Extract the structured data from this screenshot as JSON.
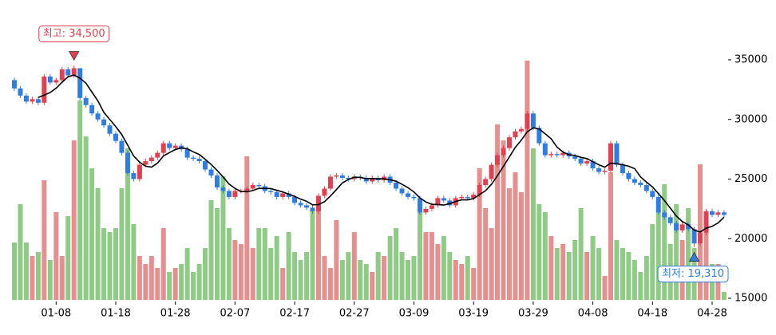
{
  "chart_data": {
    "type": "candlestick",
    "categories": [
      null,
      null,
      null,
      null,
      null,
      null,
      null,
      "01-08",
      null,
      null,
      null,
      null,
      null,
      null,
      null,
      null,
      null,
      "01-18",
      null,
      null,
      null,
      null,
      null,
      null,
      null,
      null,
      null,
      "01-28",
      null,
      null,
      null,
      null,
      null,
      null,
      null,
      null,
      null,
      "02-07",
      null,
      null,
      null,
      null,
      null,
      null,
      null,
      null,
      null,
      "02-17",
      null,
      null,
      null,
      null,
      null,
      null,
      null,
      null,
      null,
      "02-27",
      null,
      null,
      null,
      null,
      null,
      null,
      null,
      null,
      null,
      "03-09",
      null,
      null,
      null,
      null,
      null,
      null,
      null,
      null,
      null,
      "03-19",
      null,
      null,
      null,
      null,
      null,
      null,
      null,
      null,
      null,
      "03-29",
      null,
      null,
      null,
      null,
      null,
      null,
      null,
      null,
      null,
      "04-08",
      null,
      null,
      null,
      null,
      null,
      null,
      null,
      null,
      null,
      "04-18",
      null,
      null,
      null,
      null,
      null,
      null,
      null,
      null,
      null,
      "04-28",
      null,
      null
    ],
    "open": [
      33300,
      32600,
      32000,
      31500,
      31700,
      31400,
      33600,
      33100,
      33300,
      34200,
      33700,
      34300,
      31800,
      31200,
      30500,
      30000,
      29500,
      28800,
      28200,
      27200,
      25500,
      25000,
      26200,
      26500,
      26800,
      27200,
      28000,
      27600,
      27800,
      27500,
      26800,
      26700,
      26500,
      25800,
      25300,
      24300,
      24000,
      23500,
      24000,
      24000,
      24200,
      24500,
      24400,
      24000,
      23900,
      23500,
      23800,
      23500,
      23000,
      22800,
      22600,
      22300,
      23600,
      24200,
      25200,
      25300,
      25100,
      25000,
      25200,
      25100,
      24800,
      25100,
      24900,
      25200,
      24700,
      24200,
      23800,
      23500,
      23400,
      22200,
      22500,
      22800,
      23400,
      23200,
      22800,
      23400,
      23500,
      23400,
      23700,
      24500,
      25000,
      26200,
      27000,
      27600,
      28500,
      29000,
      29200,
      30500,
      29300,
      28000,
      27000,
      27100,
      27000,
      27200,
      26900,
      26700,
      26300,
      26500,
      25900,
      25600,
      25700,
      28000,
      26200,
      25500,
      25000,
      24700,
      24500,
      24000,
      23500,
      22200,
      21800,
      21300,
      20700,
      21200,
      20800,
      19600,
      20500,
      22300,
      22000,
      22200
    ],
    "high": [
      33500,
      32800,
      32200,
      31900,
      31900,
      33800,
      33800,
      33500,
      34400,
      34400,
      34500,
      34300,
      32000,
      31400,
      30700,
      30200,
      29700,
      29000,
      28400,
      27400,
      25700,
      26400,
      26700,
      27000,
      27400,
      28200,
      28200,
      28000,
      28000,
      27700,
      27000,
      26900,
      26700,
      26000,
      25500,
      24500,
      24200,
      24200,
      24200,
      24400,
      24700,
      24700,
      24600,
      24200,
      24100,
      24000,
      24000,
      23700,
      23200,
      23000,
      22800,
      23800,
      24400,
      25400,
      25500,
      25500,
      25300,
      25400,
      25400,
      25300,
      25300,
      25300,
      25400,
      25400,
      24900,
      24400,
      24000,
      23700,
      23600,
      22700,
      23000,
      23600,
      23600,
      23400,
      23600,
      23700,
      23700,
      23900,
      24700,
      25200,
      26400,
      27200,
      27800,
      28700,
      29200,
      29400,
      30700,
      30700,
      29500,
      28200,
      27300,
      27300,
      27400,
      27400,
      27100,
      26900,
      26700,
      26700,
      26100,
      25900,
      28200,
      28200,
      26400,
      25700,
      25200,
      24900,
      24700,
      24200,
      23700,
      22400,
      22000,
      21500,
      21400,
      21400,
      21000,
      20700,
      22500,
      22500,
      22400,
      22400
    ],
    "low": [
      32400,
      31800,
      31300,
      31300,
      31200,
      31200,
      32900,
      32900,
      33100,
      33500,
      33500,
      31600,
      31000,
      30300,
      29800,
      29300,
      28600,
      28000,
      27000,
      25300,
      24800,
      24800,
      26000,
      26300,
      26600,
      27000,
      27400,
      27400,
      27300,
      26600,
      26500,
      26300,
      25600,
      25100,
      24100,
      23800,
      23300,
      23300,
      23800,
      23800,
      24000,
      24200,
      23800,
      23700,
      23300,
      23300,
      23300,
      22800,
      22600,
      22400,
      22100,
      22100,
      23400,
      24000,
      25000,
      24900,
      24800,
      24800,
      24900,
      24600,
      24600,
      24700,
      24700,
      24500,
      24000,
      23600,
      23300,
      23200,
      22000,
      22000,
      22300,
      22600,
      23000,
      22600,
      22600,
      23200,
      23200,
      23200,
      23500,
      24300,
      24800,
      26000,
      26800,
      27400,
      28300,
      28800,
      29000,
      29100,
      27800,
      26800,
      26800,
      26800,
      26800,
      26700,
      26500,
      26100,
      26100,
      25700,
      25400,
      25400,
      25500,
      26000,
      25300,
      24800,
      24500,
      24300,
      23800,
      23300,
      22000,
      21600,
      21100,
      20500,
      20500,
      20600,
      19310,
      19400,
      20300,
      21800,
      21800,
      21800
    ],
    "close": [
      32600,
      32000,
      31500,
      31700,
      31400,
      33600,
      33100,
      33300,
      34200,
      33700,
      34300,
      31800,
      31200,
      30500,
      30000,
      29500,
      28800,
      28200,
      27200,
      25500,
      25000,
      26200,
      26500,
      26800,
      27200,
      28000,
      27600,
      27800,
      27500,
      26800,
      26700,
      26500,
      25800,
      25300,
      24300,
      24000,
      23500,
      24000,
      24000,
      24200,
      24500,
      24400,
      24000,
      23900,
      23500,
      23800,
      23500,
      23000,
      22800,
      22600,
      22300,
      23600,
      24200,
      25200,
      25300,
      25100,
      25000,
      25200,
      25100,
      24800,
      25100,
      24900,
      25200,
      24700,
      24200,
      23800,
      23500,
      23400,
      22200,
      22500,
      22800,
      23400,
      23200,
      22800,
      23400,
      23500,
      23400,
      23700,
      24500,
      25000,
      26200,
      27000,
      27600,
      28500,
      29000,
      29200,
      30500,
      29300,
      28000,
      27000,
      27100,
      27000,
      27200,
      26900,
      26700,
      26300,
      26500,
      25900,
      25600,
      25700,
      28000,
      26200,
      25500,
      25000,
      24700,
      24500,
      24000,
      23500,
      22200,
      21800,
      21300,
      20700,
      21200,
      20800,
      19600,
      20500,
      22300,
      22000,
      22200,
      22000
    ],
    "volume": [
      72,
      120,
      72,
      55,
      60,
      150,
      50,
      110,
      55,
      105,
      200,
      250,
      205,
      165,
      140,
      90,
      85,
      90,
      140,
      190,
      95,
      55,
      45,
      55,
      40,
      90,
      35,
      40,
      45,
      65,
      35,
      45,
      65,
      125,
      115,
      155,
      90,
      75,
      70,
      180,
      65,
      90,
      90,
      65,
      80,
      40,
      85,
      60,
      50,
      60,
      115,
      120,
      55,
      40,
      100,
      50,
      60,
      85,
      50,
      45,
      35,
      60,
      55,
      80,
      90,
      60,
      50,
      55,
      110,
      85,
      85,
      70,
      80,
      60,
      50,
      45,
      55,
      40,
      165,
      115,
      90,
      220,
      200,
      140,
      160,
      135,
      300,
      190,
      120,
      110,
      80,
      65,
      70,
      60,
      75,
      115,
      60,
      80,
      65,
      30,
      160,
      75,
      65,
      60,
      50,
      35,
      55,
      95,
      110,
      145,
      70,
      120,
      75,
      115,
      65,
      170,
      85,
      45,
      45,
      10
    ],
    "ma": [
      null,
      null,
      null,
      null,
      31840,
      32040,
      32260,
      32620,
      33120,
      33580,
      33720,
      33460,
      33040,
      32300,
      31560,
      30600,
      30000,
      29400,
      28740,
      27840,
      26940,
      26420,
      26080,
      26000,
      26340,
      26940,
      27220,
      27480,
      27620,
      27540,
      27280,
      27060,
      26660,
      26220,
      25720,
      25180,
      24580,
      24220,
      23960,
      23940,
      24040,
      24220,
      24220,
      24200,
      24060,
      23920,
      23740,
      23540,
      23320,
      23140,
      22840,
      22860,
      23100,
      23580,
      24120,
      24680,
      24960,
      25160,
      25140,
      25040,
      25040,
      25020,
      25020,
      24940,
      24820,
      24560,
      24280,
      23920,
      23420,
      23080,
      22880,
      22860,
      22820,
      22940,
      23120,
      23260,
      23260,
      23360,
      23700,
      24020,
      24560,
      25280,
      26060,
      26860,
      27660,
      28260,
      28960,
      29300,
      29200,
      28800,
      28380,
      27680,
      27260,
      27040,
      26980,
      26820,
      26720,
      26460,
      26200,
      26000,
      26340,
      26280,
      26200,
      26080,
      25880,
      25180,
      24740,
      24340,
      23780,
      23200,
      22560,
      21900,
      21440,
      21160,
      20720,
      20560,
      20880,
      21040,
      21320,
      21800
    ],
    "up_color": "#e0404f",
    "down_color": "#2f7de1",
    "volume_up_color": "#e58f8f",
    "volume_down_color": "#8fcb86",
    "ma_color": "#000000",
    "ylim": [
      15000,
      35000
    ],
    "yticks": [
      15000,
      20000,
      25000,
      30000,
      35000
    ],
    "annotations": [
      {
        "label": "최고: 34,500",
        "value": 34500
      },
      {
        "label": "최저: 19,310",
        "value": 19310
      }
    ]
  }
}
